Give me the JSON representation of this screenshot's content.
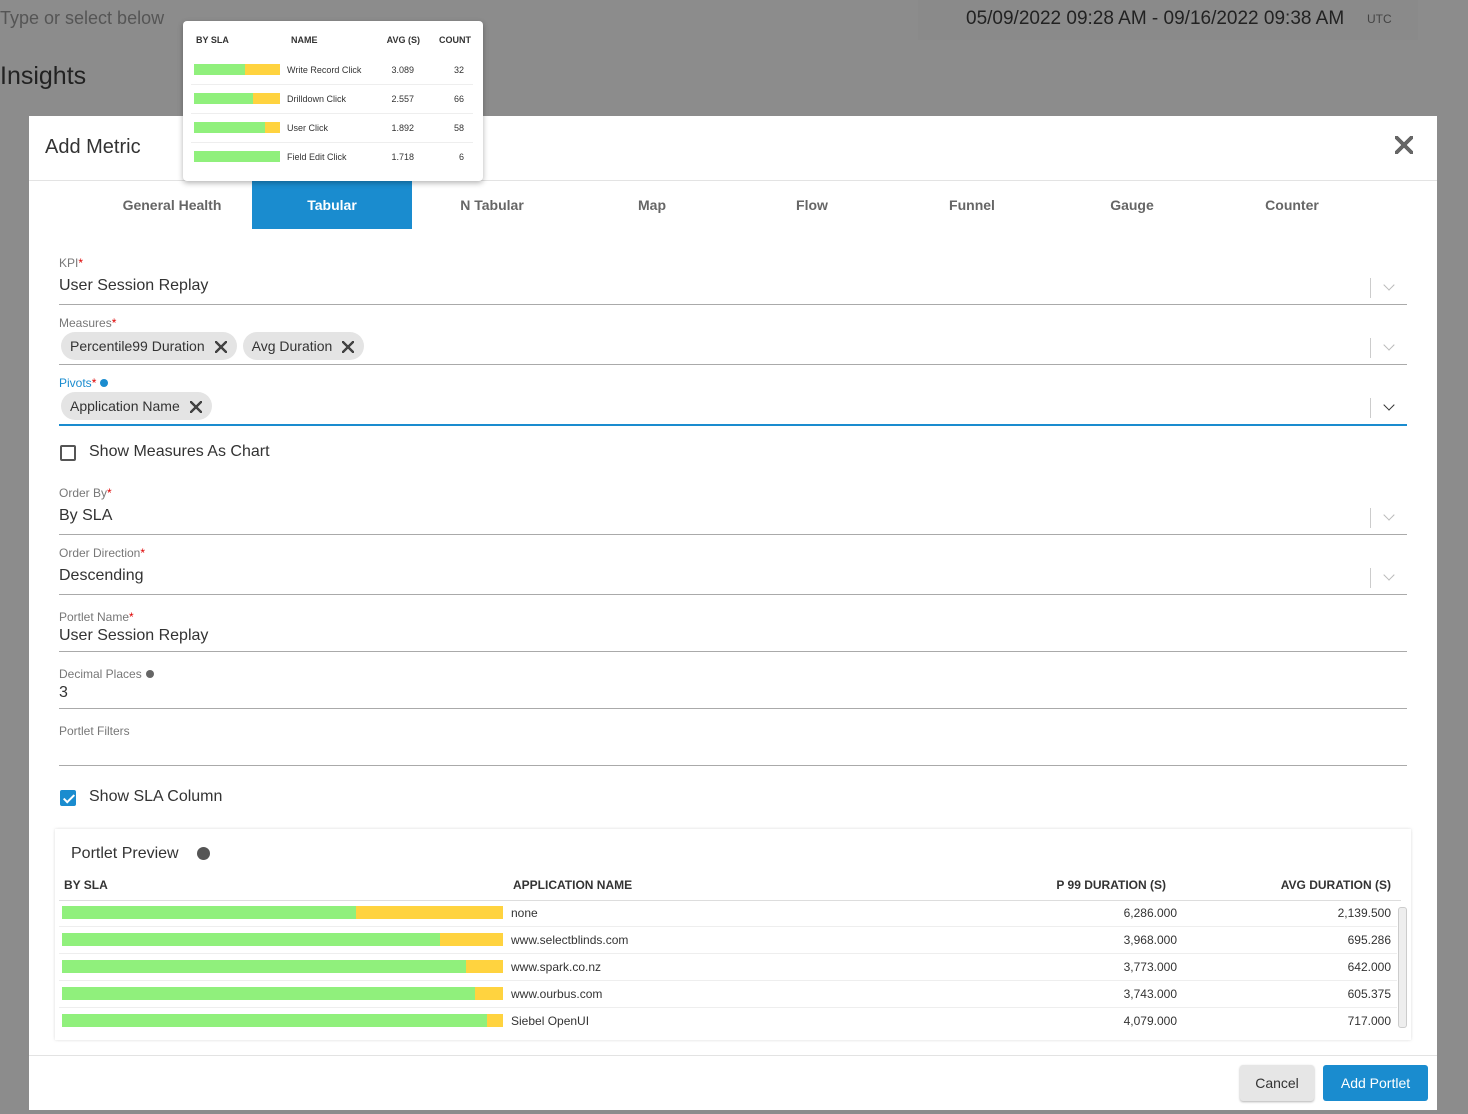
{
  "background": {
    "search_placeholder": "Type or select below",
    "date_range": "05/09/2022 09:28 AM - 09/16/2022 09:38 AM",
    "timezone": "UTC",
    "page_title": "Insights"
  },
  "tooltip_table": {
    "columns": [
      "BY SLA",
      "NAME",
      "AVG (S)",
      "COUNT"
    ],
    "rows": [
      {
        "sla": 0.59,
        "name": "Write Record Click",
        "avg": "3.089",
        "count": "32"
      },
      {
        "sla": 0.69,
        "name": "Drilldown Click",
        "avg": "2.557",
        "count": "66"
      },
      {
        "sla": 0.83,
        "name": "User Click",
        "avg": "1.892",
        "count": "58"
      },
      {
        "sla": 1.0,
        "name": "Field Edit Click",
        "avg": "1.718",
        "count": "6"
      }
    ]
  },
  "dialog": {
    "title": "Add Metric",
    "required_mark": "*",
    "tabs": [
      "General Health",
      "Tabular",
      "N Tabular",
      "Map",
      "Flow",
      "Funnel",
      "Gauge",
      "Counter"
    ],
    "active_tab": 1,
    "fields": [
      {
        "label": "KPI",
        "value": "User Session Replay"
      },
      {
        "label": "Measures",
        "chips": [
          "Percentile99 Duration",
          "Avg Duration"
        ]
      },
      {
        "label": "Pivots",
        "chips": [
          "Application Name"
        ]
      },
      {
        "label": "Order By",
        "value": "By SLA"
      },
      {
        "label": "Order Direction",
        "value": "Descending"
      },
      {
        "label": "Portlet Name",
        "value": "User Session Replay"
      },
      {
        "label": "Decimal Places",
        "value": "3"
      },
      {
        "label": "Portlet Filters"
      }
    ],
    "show_measures_as_chart": {
      "label": "Show Measures As Chart",
      "checked": false
    },
    "show_sla_column": {
      "label": "Show SLA Column",
      "checked": true
    },
    "preview": {
      "title": "Portlet Preview",
      "columns": [
        "BY SLA",
        "APPLICATION NAME",
        "P 99 DURATION (S)",
        "AVG DURATION (S)"
      ],
      "rows": [
        {
          "sla": 0.667,
          "name": "none",
          "p99": "6,286.000",
          "avg": "2,139.500"
        },
        {
          "sla": 0.857,
          "name": "www.selectblinds.com",
          "p99": "3,968.000",
          "avg": "695.286"
        },
        {
          "sla": 0.916,
          "name": "www.spark.co.nz",
          "p99": "3,773.000",
          "avg": "642.000"
        },
        {
          "sla": 0.937,
          "name": "www.ourbus.com",
          "p99": "3,743.000",
          "avg": "605.375"
        },
        {
          "sla": 0.964,
          "name": "Siebel OpenUI",
          "p99": "4,079.000",
          "avg": "717.000"
        }
      ]
    },
    "cancel": "Cancel",
    "submit": "Add Portlet"
  }
}
